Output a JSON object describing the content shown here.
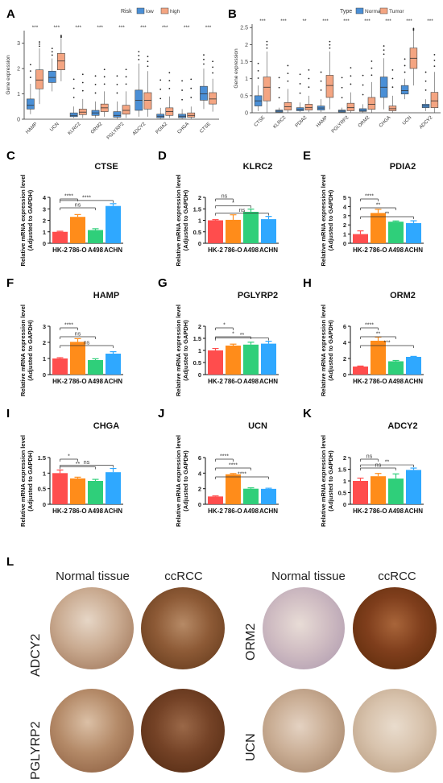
{
  "panel_labels": [
    "A",
    "B",
    "C",
    "D",
    "E",
    "F",
    "G",
    "H",
    "I",
    "J",
    "K",
    "L"
  ],
  "chart_data": [
    {
      "panel": "A",
      "type": "box",
      "legend_title": "Risk",
      "legend": [
        "low",
        "high"
      ],
      "colors": {
        "low": "#4a8fd6",
        "high": "#f4a582"
      },
      "ylabel": "Gene expression",
      "ylim": [
        0,
        3.5
      ],
      "yticks": [
        0,
        1,
        2,
        3
      ],
      "categories": [
        "HAMP",
        "UCN",
        "KLRC2",
        "ORM2",
        "PGLYRP2",
        "ADCY2",
        "PDIA2",
        "CHGA",
        "CTSE"
      ],
      "significance": [
        "***",
        "***",
        "***",
        "***",
        "***",
        "***",
        "***",
        "***",
        "***"
      ],
      "series": [
        {
          "name": "low",
          "box": [
            [
              0.2,
              0.4,
              0.55,
              0.8,
              1.4
            ],
            [
              1.1,
              1.45,
              1.65,
              1.9,
              2.4
            ],
            [
              0.05,
              0.1,
              0.15,
              0.25,
              0.5
            ],
            [
              0.05,
              0.15,
              0.25,
              0.35,
              0.7
            ],
            [
              0.02,
              0.08,
              0.15,
              0.3,
              0.7
            ],
            [
              0.1,
              0.35,
              0.75,
              1.15,
              2.2
            ],
            [
              0.02,
              0.06,
              0.12,
              0.2,
              0.45
            ],
            [
              0.02,
              0.06,
              0.12,
              0.2,
              0.4
            ],
            [
              0.4,
              0.75,
              1.0,
              1.3,
              2.0
            ]
          ]
        },
        {
          "name": "high",
          "box": [
            [
              0.6,
              1.2,
              1.55,
              1.95,
              2.8
            ],
            [
              1.5,
              1.95,
              2.3,
              2.6,
              3.2
            ],
            [
              0.05,
              0.18,
              0.28,
              0.4,
              0.8
            ],
            [
              0.1,
              0.3,
              0.45,
              0.6,
              1.1
            ],
            [
              0.05,
              0.2,
              0.35,
              0.55,
              1.1
            ],
            [
              0.1,
              0.4,
              0.75,
              1.05,
              1.9
            ],
            [
              0.05,
              0.15,
              0.3,
              0.45,
              0.9
            ],
            [
              0.02,
              0.08,
              0.15,
              0.25,
              0.5
            ],
            [
              0.3,
              0.6,
              0.8,
              1.05,
              1.6
            ]
          ]
        }
      ]
    },
    {
      "panel": "B",
      "type": "box",
      "legend_title": "Type",
      "legend": [
        "Normal",
        "Tumor"
      ],
      "colors": {
        "Normal": "#4a8fd6",
        "Tumor": "#f4a582"
      },
      "ylabel": "Gene expression",
      "ylim": [
        0,
        2.6
      ],
      "yticks": [
        0,
        0.5,
        1,
        1.5,
        2,
        2.5
      ],
      "categories": [
        "CTSE",
        "KLRC2",
        "PDIA2",
        "HAMP",
        "PGLYRP2",
        "ORM2",
        "CHGA",
        "UCN",
        "ADCY2"
      ],
      "significance": [
        "***",
        "***",
        "**",
        "***",
        "***",
        "***",
        "***",
        "***",
        "***"
      ],
      "series": [
        {
          "name": "Normal",
          "box": [
            [
              0.05,
              0.2,
              0.35,
              0.5,
              0.8
            ],
            [
              0.0,
              0.02,
              0.05,
              0.08,
              0.15
            ],
            [
              0.02,
              0.06,
              0.1,
              0.15,
              0.3
            ],
            [
              0.02,
              0.08,
              0.14,
              0.2,
              0.4
            ],
            [
              0.0,
              0.02,
              0.05,
              0.08,
              0.15
            ],
            [
              0.0,
              0.04,
              0.07,
              0.12,
              0.25
            ],
            [
              0.1,
              0.45,
              0.75,
              1.05,
              1.6
            ],
            [
              0.4,
              0.55,
              0.65,
              0.8,
              1.0
            ],
            [
              0.05,
              0.15,
              0.2,
              0.25,
              0.4
            ]
          ]
        },
        {
          "name": "Tumor",
          "box": [
            [
              0.0,
              0.35,
              0.75,
              1.05,
              1.8
            ],
            [
              0.0,
              0.08,
              0.18,
              0.3,
              0.7
            ],
            [
              0.02,
              0.08,
              0.15,
              0.25,
              0.5
            ],
            [
              0.1,
              0.45,
              0.8,
              1.1,
              1.8
            ],
            [
              0.0,
              0.06,
              0.15,
              0.28,
              0.6
            ],
            [
              0.0,
              0.1,
              0.25,
              0.45,
              0.9
            ],
            [
              0.0,
              0.06,
              0.12,
              0.2,
              0.5
            ],
            [
              0.8,
              1.3,
              1.6,
              1.9,
              2.4
            ],
            [
              0.0,
              0.15,
              0.35,
              0.6,
              1.2
            ]
          ]
        }
      ]
    },
    {
      "panel": "C",
      "type": "bar",
      "title": "CTSE",
      "ylabel": [
        "Relative mRNA expression level",
        "(Adjusted to GAPDH)"
      ],
      "categories": [
        "HK-2",
        "786-O",
        "A498",
        "ACHN"
      ],
      "values": [
        1.0,
        2.3,
        1.15,
        3.25
      ],
      "errors": [
        0.05,
        0.2,
        0.12,
        0.2
      ],
      "ylim": [
        0,
        4
      ],
      "yticks": [
        0,
        1,
        2,
        3,
        4
      ],
      "brackets": [
        {
          "to": 1,
          "label": "****"
        },
        {
          "to": 2,
          "label": "ns"
        },
        {
          "to": 3,
          "label": "****"
        }
      ]
    },
    {
      "panel": "D",
      "type": "bar",
      "title": "KLRC2",
      "ylabel": [
        "Relative mRNA expression level",
        "(Adjusted to GAPDH)"
      ],
      "categories": [
        "HK-2",
        "786-O",
        "A498",
        "ACHN"
      ],
      "values": [
        1.0,
        1.02,
        1.37,
        1.05
      ],
      "errors": [
        0.03,
        0.22,
        0.12,
        0.12
      ],
      "ylim": [
        0,
        2.0
      ],
      "yticks": [
        0,
        0.5,
        1.0,
        1.5,
        2.0
      ],
      "brackets": [
        {
          "to": 1,
          "label": "ns"
        },
        {
          "to": 2,
          "label": "*"
        },
        {
          "to": 3,
          "label": "ns"
        }
      ]
    },
    {
      "panel": "E",
      "type": "bar",
      "title": "PDIA2",
      "ylabel": [
        "Relative mRNA expression level",
        "(Adjusted to GAPDH)"
      ],
      "categories": [
        "HK-2",
        "786-O",
        "A498",
        "ACHN"
      ],
      "values": [
        1.0,
        3.3,
        2.35,
        2.2
      ],
      "errors": [
        0.35,
        0.4,
        0.08,
        0.25
      ],
      "ylim": [
        0,
        5
      ],
      "yticks": [
        0,
        1,
        2,
        3,
        4,
        5
      ],
      "brackets": [
        {
          "to": 1,
          "label": "****"
        },
        {
          "to": 2,
          "label": "**"
        },
        {
          "to": 3,
          "label": "**"
        }
      ]
    },
    {
      "panel": "F",
      "type": "bar",
      "title": "HAMP",
      "ylabel": [
        "Relative mRNA expression level",
        "(Adjusted to GAPDH)"
      ],
      "categories": [
        "HK-2",
        "786-O",
        "A498",
        "ACHN"
      ],
      "values": [
        1.0,
        2.03,
        0.9,
        1.3
      ],
      "errors": [
        0.05,
        0.2,
        0.08,
        0.12
      ],
      "ylim": [
        0,
        3
      ],
      "yticks": [
        0,
        1,
        2,
        3
      ],
      "brackets": [
        {
          "to": 1,
          "label": "****"
        },
        {
          "to": 2,
          "label": "ns"
        },
        {
          "to": 3,
          "label": "ns"
        }
      ]
    },
    {
      "panel": "G",
      "type": "bar",
      "title": "PGLYRP2",
      "ylabel": [
        "Relative mRNA expression level",
        "(Adjusted to GAPDH)"
      ],
      "categories": [
        "HK-2",
        "786-O",
        "A498",
        "ACHN"
      ],
      "values": [
        1.0,
        1.2,
        1.24,
        1.28
      ],
      "errors": [
        0.08,
        0.06,
        0.1,
        0.1
      ],
      "ylim": [
        0,
        2.0
      ],
      "yticks": [
        0,
        0.5,
        1.0,
        1.5,
        2.0
      ],
      "brackets": [
        {
          "to": 1,
          "label": "*"
        },
        {
          "to": 2,
          "label": "*"
        },
        {
          "to": 3,
          "label": "**"
        }
      ]
    },
    {
      "panel": "H",
      "type": "bar",
      "title": "ORM2",
      "ylabel": [
        "Relative mRNA expression level",
        "(Adjusted to GAPDH)"
      ],
      "categories": [
        "HK-2",
        "786-O",
        "A498",
        "ACHN"
      ],
      "values": [
        1.0,
        4.2,
        1.65,
        2.2
      ],
      "errors": [
        0.06,
        0.45,
        0.1,
        0.06
      ],
      "ylim": [
        0,
        6
      ],
      "yticks": [
        0,
        2,
        4,
        6
      ],
      "brackets": [
        {
          "to": 1,
          "label": "****"
        },
        {
          "to": 2,
          "label": "**"
        },
        {
          "to": 3,
          "label": "***"
        }
      ]
    },
    {
      "panel": "I",
      "type": "bar",
      "title": "CHGA",
      "ylabel": [
        "Relative mRNA expression level",
        "(Adjusted to GAPDH)"
      ],
      "categories": [
        "HK-2",
        "786-O",
        "A498",
        "ACHN"
      ],
      "values": [
        1.0,
        0.83,
        0.75,
        1.03
      ],
      "errors": [
        0.1,
        0.04,
        0.05,
        0.12
      ],
      "ylim": [
        0,
        1.5
      ],
      "yticks": [
        0,
        0.5,
        1.0,
        1.5
      ],
      "brackets": [
        {
          "to": 1,
          "label": "*"
        },
        {
          "to": 2,
          "label": "**"
        },
        {
          "to": 3,
          "label": "ns"
        }
      ]
    },
    {
      "panel": "J",
      "type": "bar",
      "title": "UCN",
      "ylabel": [
        "Relative mRNA expression level",
        "(Adjusted to GAPDH)"
      ],
      "categories": [
        "HK-2",
        "786-O",
        "A498",
        "ACHN"
      ],
      "values": [
        1.0,
        3.85,
        2.0,
        1.98
      ],
      "errors": [
        0.08,
        0.1,
        0.12,
        0.08
      ],
      "ylim": [
        0,
        6
      ],
      "yticks": [
        0,
        2,
        4,
        6
      ],
      "brackets": [
        {
          "to": 1,
          "label": "****"
        },
        {
          "to": 2,
          "label": "****"
        },
        {
          "to": 3,
          "label": "****"
        }
      ]
    },
    {
      "panel": "K",
      "type": "bar",
      "title": "ADCY2",
      "ylabel": [
        "Relative mRNA expression level",
        "(Adjusted to GAPDH)"
      ],
      "categories": [
        "HK-2",
        "786-O",
        "A498",
        "ACHN"
      ],
      "values": [
        1.0,
        1.2,
        1.1,
        1.47
      ],
      "errors": [
        0.12,
        0.12,
        0.2,
        0.08
      ],
      "ylim": [
        0,
        2.0
      ],
      "yticks": [
        0,
        0.5,
        1.0,
        1.5,
        2.0
      ],
      "brackets": [
        {
          "to": 1,
          "label": "ns"
        },
        {
          "to": 2,
          "label": "ns"
        },
        {
          "to": 3,
          "label": "**"
        }
      ]
    }
  ],
  "bar_colors": [
    "#ff4d4d",
    "#ff8c1a",
    "#2fcf7a",
    "#2fa8ff"
  ],
  "box_colors": {
    "low": "#4a8fd6",
    "high": "#f4a582"
  },
  "tissue": {
    "columns": [
      "Normal tissue",
      "ccRCC",
      "Normal tissue",
      "ccRCC"
    ],
    "genes": [
      "ADCY2",
      "ORM2",
      "PGLYRP2",
      "UCN"
    ]
  }
}
